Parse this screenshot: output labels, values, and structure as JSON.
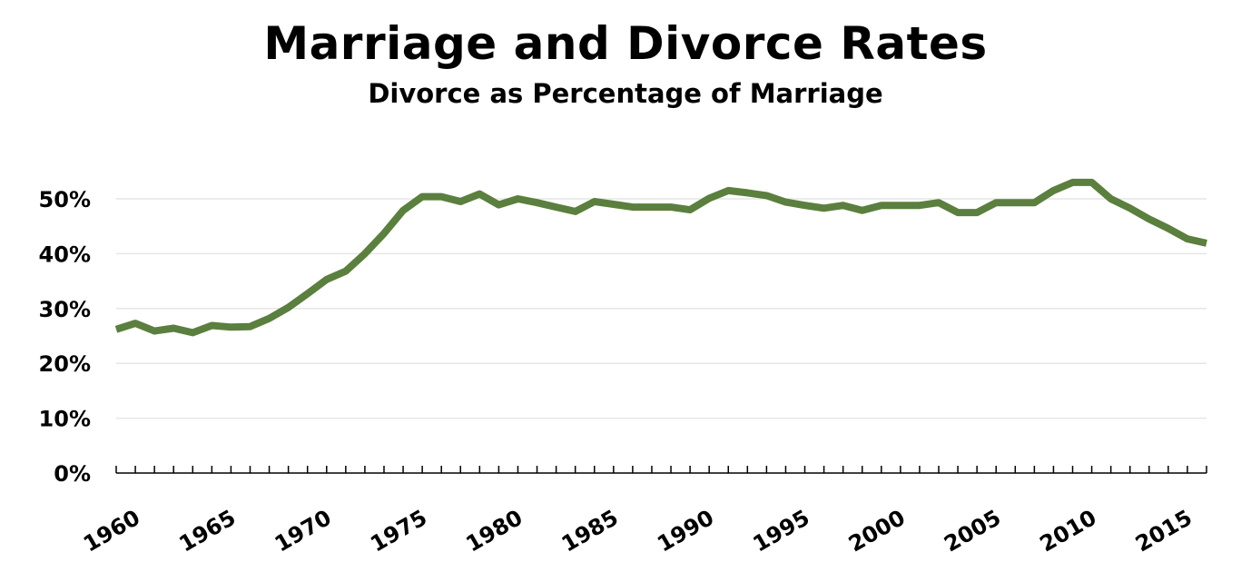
{
  "chart_data": {
    "type": "line",
    "title": "Marriage and Divorce Rates",
    "subtitle": "Divorce as Percentage of Marriage",
    "xlabel": "",
    "ylabel": "",
    "x": [
      1960,
      1961,
      1962,
      1963,
      1964,
      1965,
      1966,
      1967,
      1968,
      1969,
      1970,
      1971,
      1972,
      1973,
      1974,
      1975,
      1976,
      1977,
      1978,
      1979,
      1980,
      1981,
      1982,
      1983,
      1984,
      1985,
      1986,
      1987,
      1988,
      1989,
      1990,
      1991,
      1992,
      1993,
      1994,
      1995,
      1996,
      1997,
      1998,
      1999,
      2000,
      2001,
      2002,
      2003,
      2004,
      2005,
      2006,
      2007,
      2008,
      2009,
      2010,
      2011,
      2012,
      2013,
      2014,
      2015,
      2016,
      2017
    ],
    "series": [
      {
        "values": [
          26.2,
          27.3,
          25.9,
          26.4,
          25.6,
          26.9,
          26.6,
          26.7,
          28.2,
          30.2,
          32.7,
          35.3,
          36.8,
          40.0,
          43.7,
          47.9,
          50.4,
          50.4,
          49.5,
          50.9,
          48.9,
          50.0,
          49.3,
          48.5,
          47.7,
          49.5,
          49.0,
          48.5,
          48.5,
          48.5,
          48.0,
          50.1,
          51.5,
          51.1,
          50.6,
          49.4,
          48.8,
          48.3,
          48.8,
          47.9,
          48.8,
          48.8,
          48.8,
          49.3,
          47.5,
          47.5,
          49.3,
          49.3,
          49.3,
          51.5,
          53.0,
          53.0,
          50.0,
          48.3,
          46.3,
          44.6,
          42.7,
          41.9
        ]
      }
    ],
    "ylim": [
      0,
      50
    ],
    "yticks": [
      "0%",
      "10%",
      "20%",
      "30%",
      "40%",
      "50%"
    ],
    "xtick_labels": [
      "1960",
      "1965",
      "1970",
      "1975",
      "1980",
      "1985",
      "1990",
      "1995",
      "2000",
      "2005",
      "2010",
      "2015"
    ],
    "grid": true,
    "legend": "none",
    "colors": {
      "line": "#5b7f3e",
      "grid": "#e6e6e6",
      "axis": "#000000"
    }
  }
}
